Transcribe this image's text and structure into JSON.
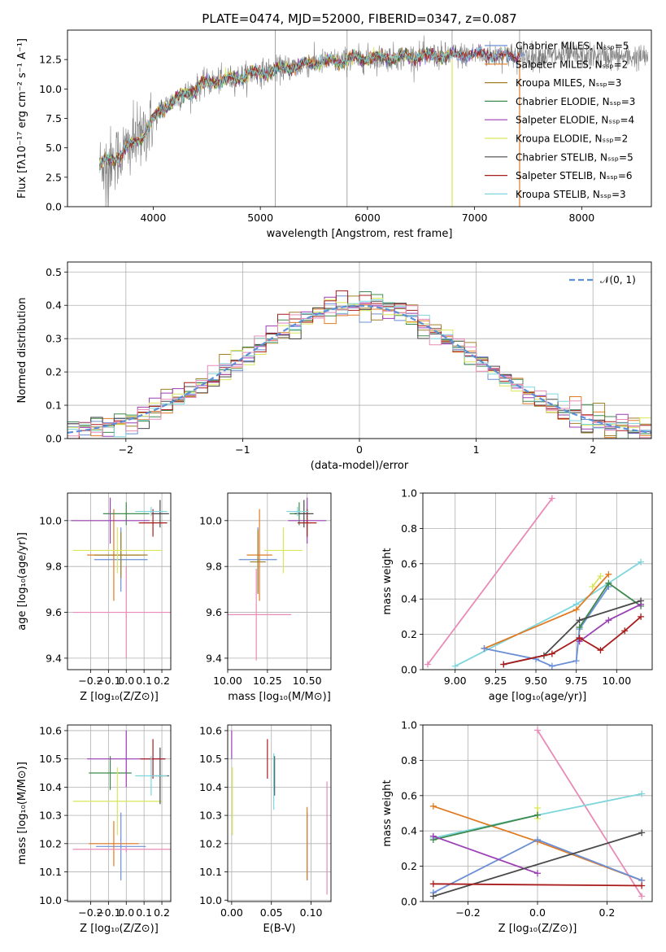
{
  "colors": {
    "Chabrier MILES": "#6b8fd6",
    "Salpeter MILES": "#e07b24",
    "Kroupa MILES": "#a1802a",
    "Chabrier ELODIE": "#3f8a4e",
    "Salpeter ELODIE": "#9b3fb4",
    "Kroupa ELODIE": "#d9e65a",
    "Chabrier STELIB": "#4a4a4a",
    "Salpeter STELIB": "#a81c1c",
    "Kroupa STELIB": "#7dd6dc",
    "pink": "#e88bb8",
    "spectrum": "#808080",
    "normal": "#5b8fd6"
  },
  "chart_data": [
    {
      "id": "spectrum",
      "type": "line",
      "title": "PLATE=0474, MJD=52000, FIBERID=0347, z=0.087",
      "xlabel": "wavelength [Angstrom, rest frame]",
      "ylabel": "Flux [fλ10⁻¹⁷ erg cm⁻² s⁻¹ A⁻¹]",
      "xlim": [
        3200,
        8650
      ],
      "ylim": [
        0,
        15
      ],
      "xticks": [
        4000,
        5000,
        6000,
        7000,
        8000
      ],
      "yticks": [
        0.0,
        2.5,
        5.0,
        7.5,
        10.0,
        12.5
      ],
      "grid": false,
      "legend_position": "right",
      "legend": [
        "Chabrier MILES, Nₛₛₚ=5",
        "Salpeter MILES, Nₛₛₚ=2",
        "Kroupa MILES, Nₛₛₚ=3",
        "Chabrier ELODIE, Nₛₛₚ=3",
        "Salpeter ELODIE, Nₛₛₚ=4",
        "Kroupa ELODIE, Nₛₛₚ=2",
        "Chabrier STELIB, Nₛₛₚ=5",
        "Salpeter STELIB, Nₛₛₚ=6",
        "Kroupa STELIB, Nₛₛₚ=3"
      ],
      "continuum": {
        "x": [
          3500,
          3700,
          3900,
          4000,
          4100,
          4300,
          4500,
          4800,
          5000,
          5500,
          6000,
          6500,
          7000,
          7500,
          8000,
          8500
        ],
        "y": [
          3.5,
          4.5,
          6.0,
          7.4,
          8.5,
          9.6,
          10.5,
          11.0,
          11.4,
          12.2,
          12.6,
          12.8,
          12.9,
          12.8,
          12.8,
          12.7
        ]
      },
      "spikes": [
        {
          "x": 5140,
          "y": 15
        },
        {
          "x": 5810,
          "y": 15
        },
        {
          "x": 6790,
          "y": 15
        },
        {
          "x": 7420,
          "y": 15
        }
      ]
    },
    {
      "id": "residuals",
      "type": "histogram",
      "xlabel": "(data-model)/error",
      "ylabel": "Normed distribution",
      "xlim": [
        -2.5,
        2.5
      ],
      "ylim": [
        0,
        0.53
      ],
      "xticks": [
        -2,
        -1,
        0,
        1,
        2
      ],
      "yticks": [
        0.0,
        0.1,
        0.2,
        0.3,
        0.4,
        0.5
      ],
      "grid": true,
      "legend_position": "top-right",
      "legend": [
        "𝒩(0, 1)"
      ],
      "bin_width": 0.1,
      "normal_mean": 0,
      "normal_sigma": 1
    },
    {
      "id": "age-vs-Z",
      "type": "errorbar",
      "xlabel": "Z [log₁₀(Z/Z⊙)]",
      "ylabel": "age  [log₁₀(age/yr)]",
      "xlim": [
        -0.33,
        0.25
      ],
      "ylim": [
        9.35,
        10.12
      ],
      "xticks": [
        -0.2,
        -0.1,
        0.0,
        0.1,
        0.2
      ],
      "yticks": [
        9.4,
        9.6,
        9.8,
        10.0
      ],
      "grid": true,
      "points": [
        {
          "c": "Chabrier MILES",
          "x": -0.03,
          "xe": 0.15,
          "y": 9.83,
          "ye": 0.14
        },
        {
          "c": "Salpeter MILES",
          "x": -0.07,
          "xe": 0.15,
          "y": 9.85,
          "ye": 0.2
        },
        {
          "c": "Kroupa MILES",
          "x": -0.03,
          "xe": 0.15,
          "y": 9.85,
          "ye": 0.1
        },
        {
          "c": "Chabrier ELODIE",
          "x": 0.0,
          "xe": 0.13,
          "y": 10.03,
          "ye": 0.05
        },
        {
          "c": "Salpeter ELODIE",
          "x": -0.09,
          "xe": 0.22,
          "y": 10.0,
          "ye": 0.1
        },
        {
          "c": "Kroupa ELODIE",
          "x": -0.05,
          "xe": 0.25,
          "y": 9.87,
          "ye": 0.1
        },
        {
          "c": "Chabrier STELIB",
          "x": 0.19,
          "xe": 0.05,
          "y": 10.03,
          "ye": 0.06
        },
        {
          "c": "Salpeter STELIB",
          "x": 0.15,
          "xe": 0.08,
          "y": 9.99,
          "ye": 0.06
        },
        {
          "c": "Kroupa STELIB",
          "x": 0.14,
          "xe": 0.09,
          "y": 10.04,
          "ye": 0.02
        },
        {
          "c": "pink",
          "x": 0.0,
          "xe": 0.3,
          "y": 9.6,
          "ye": 0.2
        }
      ]
    },
    {
      "id": "age-vs-mass",
      "type": "errorbar",
      "xlabel": "mass [log₁₀(M/M⊙)]",
      "ylabel": "",
      "xlim": [
        10.0,
        10.65
      ],
      "ylim": [
        9.35,
        10.12
      ],
      "xticks": [
        10.0,
        10.25,
        10.5
      ],
      "yticks": [
        9.4,
        9.6,
        9.8,
        10.0
      ],
      "grid": true,
      "points": [
        {
          "c": "Chabrier MILES",
          "x": 10.19,
          "xe": 0.12,
          "y": 9.83,
          "ye": 0.14
        },
        {
          "c": "Salpeter MILES",
          "x": 10.2,
          "xe": 0.08,
          "y": 9.85,
          "ye": 0.2
        },
        {
          "c": "Kroupa MILES",
          "x": 10.19,
          "xe": 0.05,
          "y": 9.82,
          "ye": 0.14
        },
        {
          "c": "Chabrier ELODIE",
          "x": 10.45,
          "xe": 0.06,
          "y": 10.03,
          "ye": 0.05
        },
        {
          "c": "Salpeter ELODIE",
          "x": 10.5,
          "xe": 0.12,
          "y": 10.0,
          "ye": 0.1
        },
        {
          "c": "Kroupa ELODIE",
          "x": 10.35,
          "xe": 0.12,
          "y": 9.87,
          "ye": 0.1
        },
        {
          "c": "Chabrier STELIB",
          "x": 10.48,
          "xe": 0.06,
          "y": 10.03,
          "ye": 0.06
        },
        {
          "c": "Salpeter STELIB",
          "x": 10.5,
          "xe": 0.06,
          "y": 9.99,
          "ye": 0.06
        },
        {
          "c": "Kroupa STELIB",
          "x": 10.44,
          "xe": 0.07,
          "y": 10.04,
          "ye": 0.02
        },
        {
          "c": "pink",
          "x": 10.18,
          "xe": 0.22,
          "y": 9.59,
          "ye": 0.2
        }
      ]
    },
    {
      "id": "weight-vs-age",
      "type": "line",
      "xlabel": "age  [log₁₀(age/yr)]",
      "ylabel": "mass weight",
      "xlim": [
        8.8,
        10.22
      ],
      "ylim": [
        0,
        1
      ],
      "xticks": [
        9.0,
        9.25,
        9.5,
        9.75,
        10.0
      ],
      "yticks": [
        0.0,
        0.2,
        0.4,
        0.6,
        0.8,
        1.0
      ],
      "grid": true,
      "series": [
        {
          "c": "pink",
          "x": [
            8.83,
            9.6
          ],
          "y": [
            0.03,
            0.97
          ]
        },
        {
          "c": "Kroupa STELIB",
          "x": [
            9.0,
            9.75,
            10.15
          ],
          "y": [
            0.02,
            0.37,
            0.61
          ]
        },
        {
          "c": "Salpeter MILES",
          "x": [
            9.18,
            9.75,
            9.95
          ],
          "y": [
            0.12,
            0.34,
            0.54
          ]
        },
        {
          "c": "Chabrier MILES",
          "x": [
            9.18,
            9.5,
            9.6,
            9.75,
            9.77,
            9.95
          ],
          "y": [
            0.12,
            0.06,
            0.02,
            0.05,
            0.23,
            0.47
          ]
        },
        {
          "c": "Kroupa ELODIE",
          "x": [
            9.85,
            9.9
          ],
          "y": [
            0.47,
            0.53
          ]
        },
        {
          "c": "Chabrier ELODIE",
          "x": [
            9.77,
            9.95,
            10.15
          ],
          "y": [
            0.24,
            0.49,
            0.36
          ]
        },
        {
          "c": "Salpeter ELODIE",
          "x": [
            9.77,
            9.95,
            10.15
          ],
          "y": [
            0.16,
            0.28,
            0.37
          ]
        },
        {
          "c": "Chabrier STELIB",
          "x": [
            9.3,
            9.55,
            9.77,
            10.15
          ],
          "y": [
            0.03,
            0.08,
            0.28,
            0.39
          ]
        },
        {
          "c": "Salpeter STELIB",
          "x": [
            9.3,
            9.6,
            9.77,
            9.9,
            10.05,
            10.15
          ],
          "y": [
            0.03,
            0.09,
            0.18,
            0.11,
            0.22,
            0.3
          ]
        }
      ]
    },
    {
      "id": "mass-vs-Z",
      "type": "errorbar",
      "xlabel": "Z [log₁₀(Z/Z⊙)]",
      "ylabel": "mass [log₁₀(M/M⊙)]",
      "xlim": [
        -0.33,
        0.25
      ],
      "ylim": [
        9.995,
        10.62
      ],
      "xticks": [
        -0.2,
        -0.1,
        0.0,
        0.1,
        0.2
      ],
      "yticks": [
        10.0,
        10.1,
        10.2,
        10.3,
        10.4,
        10.5,
        10.6
      ],
      "grid": true,
      "points": [
        {
          "c": "Chabrier MILES",
          "x": -0.03,
          "xe": 0.14,
          "y": 10.19,
          "ye": 0.12
        },
        {
          "c": "Salpeter MILES",
          "x": -0.07,
          "xe": 0.14,
          "y": 10.2,
          "ye": 0.08
        },
        {
          "c": "Chabrier ELODIE",
          "x": -0.09,
          "xe": 0.12,
          "y": 10.45,
          "ye": 0.06
        },
        {
          "c": "Salpeter ELODIE",
          "x": 0.0,
          "xe": 0.22,
          "y": 10.5,
          "ye": 0.1
        },
        {
          "c": "Kroupa ELODIE",
          "x": -0.05,
          "xe": 0.25,
          "y": 10.35,
          "ye": 0.12
        },
        {
          "c": "Chabrier STELIB",
          "x": 0.19,
          "xe": 0.05,
          "y": 10.44,
          "ye": 0.1
        },
        {
          "c": "Salpeter STELIB",
          "x": 0.15,
          "xe": 0.07,
          "y": 10.5,
          "ye": 0.07
        },
        {
          "c": "Kroupa STELIB",
          "x": 0.14,
          "xe": 0.09,
          "y": 10.44,
          "ye": 0.07
        },
        {
          "c": "pink",
          "x": 0.0,
          "xe": 0.3,
          "y": 10.18,
          "ye": 0.01
        }
      ]
    },
    {
      "id": "mass-vs-ebv",
      "type": "errorbar",
      "xlabel": "E(B-V)",
      "ylabel": "",
      "xlim": [
        -0.005,
        0.125
      ],
      "ylim": [
        9.995,
        10.62
      ],
      "xticks": [
        0.0,
        0.05,
        0.1
      ],
      "yticks": [
        10.0,
        10.1,
        10.2,
        10.3,
        10.4,
        10.5,
        10.6
      ],
      "grid": true,
      "points": [
        {
          "c": "Chabrier MILES",
          "x": 0.095,
          "xe": 0,
          "y": 10.19,
          "ye": 0.12
        },
        {
          "c": "Salpeter MILES",
          "x": 0.095,
          "xe": 0,
          "y": 10.2,
          "ye": 0.13
        },
        {
          "c": "Chabrier ELODIE",
          "x": 0.053,
          "xe": 0,
          "y": 10.45,
          "ye": 0.06
        },
        {
          "c": "Salpeter ELODIE",
          "x": 0.0,
          "xe": 0,
          "y": 10.55,
          "ye": 0.05
        },
        {
          "c": "Kroupa ELODIE",
          "x": 0.001,
          "xe": 0,
          "y": 10.35,
          "ye": 0.12
        },
        {
          "c": "Chabrier STELIB",
          "x": 0.054,
          "xe": 0,
          "y": 10.44,
          "ye": 0.07
        },
        {
          "c": "Salpeter STELIB",
          "x": 0.045,
          "xe": 0,
          "y": 10.5,
          "ye": 0.07
        },
        {
          "c": "Kroupa STELIB",
          "x": 0.053,
          "xe": 0,
          "y": 10.42,
          "ye": 0.1
        },
        {
          "c": "pink",
          "x": 0.12,
          "xe": 0,
          "y": 10.22,
          "ye": 0.2
        }
      ]
    },
    {
      "id": "weight-vs-Z",
      "type": "line",
      "xlabel": "Z [log₁₀(Z/Z⊙)]",
      "ylabel": "mass weight",
      "xlim": [
        -0.33,
        0.33
      ],
      "ylim": [
        0,
        1
      ],
      "xticks": [
        -0.2,
        0.0,
        0.2
      ],
      "yticks": [
        0.0,
        0.2,
        0.4,
        0.6,
        0.8,
        1.0
      ],
      "grid": true,
      "series": [
        {
          "c": "pink",
          "x": [
            0.0,
            0.3
          ],
          "y": [
            0.97,
            0.03
          ]
        },
        {
          "c": "Kroupa STELIB",
          "x": [
            -0.3,
            0.0,
            0.3
          ],
          "y": [
            0.36,
            0.49,
            0.61
          ]
        },
        {
          "c": "Salpeter MILES",
          "x": [
            -0.3,
            0.0,
            0.3
          ],
          "y": [
            0.54,
            0.34,
            0.12
          ]
        },
        {
          "c": "Chabrier MILES",
          "x": [
            -0.3,
            0.0,
            0.3
          ],
          "y": [
            0.05,
            0.35,
            0.12
          ]
        },
        {
          "c": "Kroupa ELODIE",
          "x": [
            0.0,
            0.0
          ],
          "y": [
            0.47,
            0.53
          ]
        },
        {
          "c": "Chabrier ELODIE",
          "x": [
            -0.3,
            0.0
          ],
          "y": [
            0.35,
            0.49
          ]
        },
        {
          "c": "Salpeter ELODIE",
          "x": [
            -0.3,
            0.0
          ],
          "y": [
            0.37,
            0.16
          ]
        },
        {
          "c": "Chabrier STELIB",
          "x": [
            -0.3,
            0.3
          ],
          "y": [
            0.03,
            0.39
          ]
        },
        {
          "c": "Salpeter STELIB",
          "x": [
            -0.3,
            0.3
          ],
          "y": [
            0.1,
            0.09
          ]
        }
      ]
    }
  ]
}
